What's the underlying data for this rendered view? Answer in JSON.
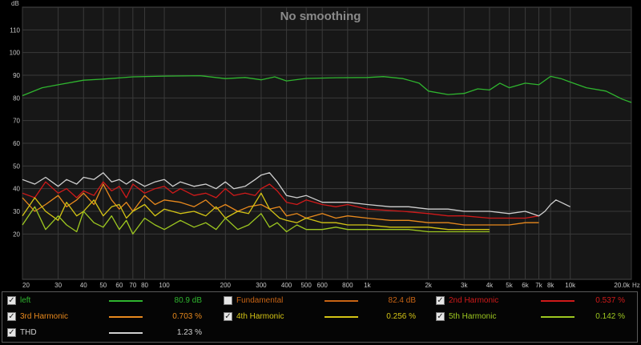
{
  "chart_data": {
    "type": "line",
    "title": "No smoothing",
    "ylabel": "dB",
    "xlabel": "Hz",
    "xscale": "log",
    "xlim": [
      20,
      20000
    ],
    "ylim": [
      0,
      120
    ],
    "x_ticks": [
      20,
      30,
      40,
      50,
      60,
      70,
      80,
      100,
      200,
      300,
      400,
      500,
      600,
      800,
      1000,
      2000,
      3000,
      4000,
      5000,
      6000,
      7000,
      8000,
      10000,
      20000
    ],
    "x_tick_labels": [
      "20",
      "30",
      "40",
      "50",
      "60",
      "70",
      "80",
      "100",
      "200",
      "300",
      "400",
      "500",
      "600",
      "800",
      "1k",
      "2k",
      "3k",
      "4k",
      "5k",
      "6k",
      "7k",
      "8k",
      "10k",
      "20.0k"
    ],
    "y_ticks": [
      20,
      30,
      40,
      50,
      60,
      70,
      80,
      90,
      100,
      110
    ],
    "grid": true,
    "series": [
      {
        "name": "left",
        "color": "#2fb52f",
        "legend_value": "80.9 dB",
        "checked": true,
        "x": [
          20,
          25,
          30,
          40,
          50,
          70,
          100,
          150,
          200,
          250,
          300,
          350,
          400,
          500,
          700,
          1000,
          1200,
          1500,
          1800,
          2000,
          2500,
          3000,
          3500,
          4000,
          4500,
          5000,
          6000,
          7000,
          8000,
          9000,
          10000,
          12000,
          15000,
          18000,
          20000
        ],
        "y": [
          81,
          84.5,
          85.8,
          87.8,
          88.3,
          89.3,
          89.6,
          89.8,
          88.5,
          89,
          88,
          89.3,
          87.5,
          88.6,
          88.9,
          89,
          89.4,
          88.5,
          86.5,
          83,
          81.5,
          82,
          84,
          83.5,
          86.5,
          84.5,
          86.5,
          85.8,
          89.5,
          88.5,
          87,
          84.5,
          83,
          79.5,
          78
        ]
      },
      {
        "name": "Fundamental",
        "color": "#c86414",
        "legend_value": "82.4 dB",
        "checked": false,
        "x": [],
        "y": []
      },
      {
        "name": "2nd Harmonic",
        "color": "#d01a1a",
        "legend_value": "0.537 %",
        "checked": true,
        "x": [
          20,
          23,
          26,
          30,
          33,
          37,
          40,
          45,
          50,
          55,
          60,
          65,
          70,
          80,
          90,
          100,
          110,
          120,
          140,
          160,
          180,
          200,
          220,
          250,
          280,
          300,
          330,
          360,
          400,
          450,
          500,
          600,
          700,
          800,
          1000,
          1500,
          2000,
          2500,
          3000,
          4000,
          5000,
          6000,
          7000
        ],
        "y": [
          38,
          36,
          43,
          38,
          40,
          36,
          39,
          37,
          43,
          39,
          41,
          36,
          42,
          38,
          40,
          41,
          38,
          40,
          37,
          38,
          36,
          40,
          37,
          38,
          37,
          40,
          42,
          39,
          34,
          33,
          35,
          33,
          32,
          33,
          31,
          30,
          29,
          28,
          28,
          27,
          27,
          27,
          28
        ]
      },
      {
        "name": "3rd Harmonic",
        "color": "#e8891d",
        "legend_value": "0.703 %",
        "checked": true,
        "x": [
          20,
          23,
          26,
          30,
          33,
          37,
          40,
          45,
          50,
          55,
          60,
          65,
          70,
          80,
          90,
          100,
          120,
          140,
          160,
          180,
          200,
          230,
          260,
          300,
          330,
          370,
          400,
          450,
          500,
          600,
          700,
          800,
          1000,
          1300,
          1600,
          2000,
          2500,
          3000,
          4000,
          5000,
          6000,
          7000
        ],
        "y": [
          36,
          30,
          33,
          37,
          32,
          35,
          38,
          33,
          42,
          35,
          31,
          34,
          30,
          37,
          33,
          35,
          34,
          32,
          35,
          31,
          33,
          30,
          32,
          33,
          31,
          32,
          28,
          29,
          27,
          29,
          27,
          28,
          27,
          26,
          26,
          25,
          25,
          24,
          24,
          24,
          25,
          25
        ]
      },
      {
        "name": "4th Harmonic",
        "color": "#d4c415",
        "legend_value": "0.256 %",
        "checked": true,
        "x": [
          20,
          23,
          26,
          30,
          33,
          37,
          40,
          45,
          50,
          55,
          60,
          65,
          70,
          80,
          90,
          100,
          120,
          140,
          160,
          180,
          200,
          230,
          260,
          300,
          330,
          370,
          400,
          450,
          500,
          600,
          700,
          800,
          1000,
          1300,
          1600,
          2000,
          2500,
          3000,
          3500,
          4000
        ],
        "y": [
          28,
          36,
          30,
          26,
          34,
          28,
          30,
          35,
          28,
          32,
          33,
          27,
          30,
          33,
          28,
          31,
          29,
          30,
          28,
          32,
          27,
          30,
          29,
          38,
          31,
          27,
          26,
          25,
          27,
          25,
          25,
          24,
          24,
          23,
          23,
          23,
          22,
          22,
          22,
          22
        ]
      },
      {
        "name": "5th Harmonic",
        "color": "#9dc720",
        "legend_value": "0.142 %",
        "checked": true,
        "x": [
          20,
          23,
          26,
          30,
          33,
          37,
          40,
          45,
          50,
          55,
          60,
          65,
          70,
          80,
          90,
          100,
          120,
          140,
          160,
          180,
          200,
          230,
          260,
          300,
          330,
          360,
          400,
          450,
          500,
          600,
          700,
          800,
          1000,
          1300,
          1600,
          2000,
          2500,
          3000,
          3500,
          4000
        ],
        "y": [
          24,
          32,
          22,
          28,
          24,
          21,
          30,
          25,
          23,
          28,
          22,
          26,
          20,
          27,
          24,
          22,
          26,
          23,
          25,
          22,
          27,
          22,
          24,
          29,
          23,
          25,
          21,
          24,
          22,
          22,
          23,
          22,
          22,
          22,
          22,
          21,
          21,
          21,
          21,
          21
        ]
      },
      {
        "name": "THD",
        "color": "#cfcfcf",
        "legend_value": "1.23 %",
        "checked": true,
        "x": [
          20,
          23,
          26,
          30,
          33,
          37,
          40,
          45,
          50,
          55,
          60,
          65,
          70,
          80,
          90,
          100,
          110,
          120,
          140,
          160,
          180,
          200,
          220,
          250,
          280,
          300,
          330,
          360,
          400,
          450,
          500,
          600,
          700,
          800,
          1000,
          1300,
          1600,
          2000,
          2500,
          3000,
          4000,
          5000,
          6000,
          7000,
          7500,
          8000,
          8500,
          9000,
          10000
        ],
        "y": [
          44,
          42,
          45,
          41,
          44,
          42,
          45,
          44,
          47,
          43,
          44,
          42,
          44,
          41,
          43,
          44,
          41,
          43,
          41,
          42,
          40,
          43,
          40,
          41,
          44,
          46,
          47,
          43,
          37,
          36,
          37,
          34,
          34,
          34,
          33,
          32,
          32,
          31,
          31,
          30,
          30,
          29,
          30,
          28,
          30,
          33,
          35,
          34,
          32
        ]
      }
    ]
  }
}
